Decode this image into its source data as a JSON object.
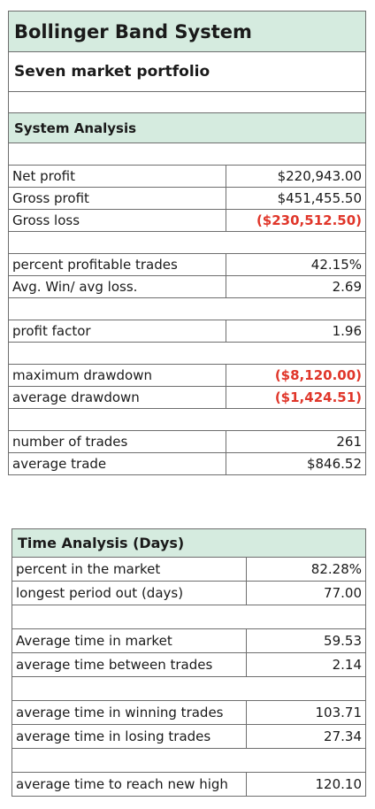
{
  "system": {
    "title": "Bollinger Band System",
    "subtitle": "Seven market portfolio",
    "section_title": "System Analysis",
    "net_profit": {
      "label": "Net profit",
      "value": "$220,943.00"
    },
    "gross_profit": {
      "label": "Gross profit",
      "value": "$451,455.50"
    },
    "gross_loss": {
      "label": "Gross loss",
      "value": "($230,512.50)"
    },
    "percent_profitable": {
      "label": "percent profitable trades",
      "value": "42.15%"
    },
    "win_loss": {
      "label": "Avg. Win/ avg loss.",
      "value": "2.69"
    },
    "profit_factor": {
      "label": "profit factor",
      "value": "1.96"
    },
    "max_drawdown": {
      "label": "maximum drawdown",
      "value": "($8,120.00)"
    },
    "avg_drawdown": {
      "label": "average drawdown",
      "value": "($1,424.51)"
    },
    "num_trades": {
      "label": "number of trades",
      "value": "261"
    },
    "avg_trade": {
      "label": "average trade",
      "value": "$846.52"
    },
    "negative_color": "#e0362a",
    "header_color": "#d5ebdf"
  },
  "time": {
    "section_title": "Time Analysis (Days)",
    "percent_in_market": {
      "label": "percent in the market",
      "value": "82.28%"
    },
    "longest_out": {
      "label": "longest period out (days)",
      "value": "77.00"
    },
    "avg_time_in_market": {
      "label": "Average time in market",
      "value": "59.53"
    },
    "avg_time_between": {
      "label": "average time between trades",
      "value": "2.14"
    },
    "avg_time_winning": {
      "label": "average time in winning trades",
      "value": "103.71"
    },
    "avg_time_losing": {
      "label": "average time in losing trades",
      "value": "27.34"
    },
    "avg_time_new_high": {
      "label": "average time to reach new high",
      "value": "120.10"
    }
  }
}
